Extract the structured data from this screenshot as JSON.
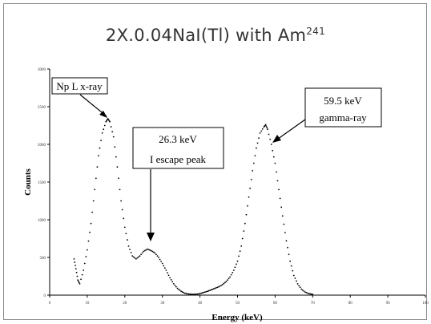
{
  "chart_data": {
    "type": "scatter",
    "title_main": "2X.0.04NaI(Tl) with Am",
    "title_sup": "241",
    "xlabel": "Energy (keV)",
    "ylabel": "Counts",
    "xlim": [
      0,
      100
    ],
    "ylim": [
      0,
      3000
    ],
    "x_ticks": [
      "0",
      "10",
      "20",
      "30",
      "40",
      "50",
      "60",
      "70",
      "80",
      "90",
      "100"
    ],
    "y_ticks": [
      "0",
      "500",
      "1000",
      "1500",
      "2000",
      "2500",
      "3000"
    ],
    "grid": false,
    "series": [
      {
        "points": [
          [
            6.5,
            480
          ],
          [
            7,
            350
          ],
          [
            7.5,
            200
          ],
          [
            8,
            150
          ],
          [
            9,
            330
          ],
          [
            10,
            600
          ],
          [
            11,
            950
          ],
          [
            12,
            1400
          ],
          [
            13,
            1850
          ],
          [
            14,
            2150
          ],
          [
            15,
            2300
          ],
          [
            15.5,
            2340
          ],
          [
            16,
            2300
          ],
          [
            17,
            2100
          ],
          [
            18,
            1700
          ],
          [
            19,
            1250
          ],
          [
            20,
            900
          ],
          [
            21,
            650
          ],
          [
            22,
            520
          ],
          [
            23,
            480
          ],
          [
            24,
            520
          ],
          [
            25,
            580
          ],
          [
            26,
            610
          ],
          [
            27,
            590
          ],
          [
            28,
            560
          ],
          [
            29,
            500
          ],
          [
            30,
            420
          ],
          [
            31,
            330
          ],
          [
            32,
            230
          ],
          [
            33,
            150
          ],
          [
            34,
            90
          ],
          [
            35,
            50
          ],
          [
            36,
            25
          ],
          [
            37,
            15
          ],
          [
            38,
            10
          ],
          [
            39,
            12
          ],
          [
            40,
            20
          ],
          [
            41,
            35
          ],
          [
            42,
            50
          ],
          [
            43,
            70
          ],
          [
            44,
            90
          ],
          [
            45,
            110
          ],
          [
            46,
            140
          ],
          [
            47,
            180
          ],
          [
            48,
            240
          ],
          [
            49,
            330
          ],
          [
            50,
            450
          ],
          [
            51,
            650
          ],
          [
            52,
            950
          ],
          [
            53,
            1300
          ],
          [
            54,
            1650
          ],
          [
            55,
            1950
          ],
          [
            56,
            2150
          ],
          [
            57,
            2230
          ],
          [
            57.5,
            2260
          ],
          [
            58,
            2200
          ],
          [
            59,
            2000
          ],
          [
            60,
            1750
          ],
          [
            61,
            1400
          ],
          [
            62,
            1050
          ],
          [
            63,
            720
          ],
          [
            64,
            450
          ],
          [
            65,
            260
          ],
          [
            66,
            150
          ],
          [
            67,
            80
          ],
          [
            68,
            40
          ],
          [
            69,
            20
          ],
          [
            70,
            10
          ]
        ]
      }
    ],
    "annotations": [
      {
        "label_lines": [
          "Np L x-ray"
        ]
      },
      {
        "label_lines": [
          "26.3 keV",
          "I escape peak"
        ]
      },
      {
        "label_lines": [
          "59.5 keV",
          "gamma-ray"
        ]
      }
    ]
  }
}
